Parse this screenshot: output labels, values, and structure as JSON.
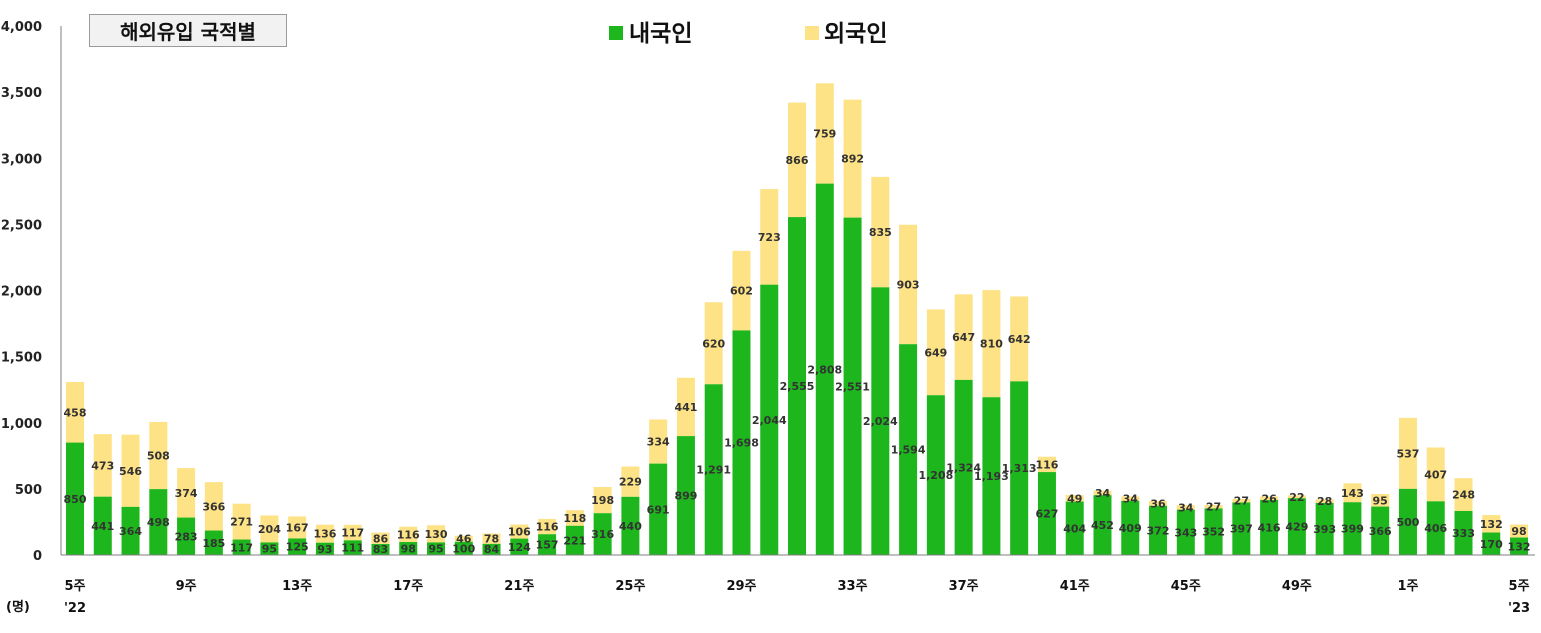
{
  "title": "해외유입 국적별",
  "unit_label": "(명)",
  "colors": {
    "domestic": "#1db61d",
    "foreign": "#fde286",
    "axis": "#7f7f7f"
  },
  "x_tick_labels": [
    {
      "index": 0,
      "label": "5주",
      "sub": "'22"
    },
    {
      "index": 4,
      "label": "9주"
    },
    {
      "index": 8,
      "label": "13주"
    },
    {
      "index": 12,
      "label": "17주"
    },
    {
      "index": 16,
      "label": "21주"
    },
    {
      "index": 20,
      "label": "25주"
    },
    {
      "index": 24,
      "label": "29주"
    },
    {
      "index": 28,
      "label": "33주"
    },
    {
      "index": 32,
      "label": "37주"
    },
    {
      "index": 36,
      "label": "41주"
    },
    {
      "index": 40,
      "label": "45주"
    },
    {
      "index": 44,
      "label": "49주"
    },
    {
      "index": 48,
      "label": "1주"
    },
    {
      "index": 52,
      "label": "5주",
      "sub": "'23"
    }
  ],
  "chart_data": {
    "type": "bar",
    "stacked": true,
    "title": "해외유입 국적별",
    "ylabel": "(명)",
    "ylim": [
      0,
      4000
    ],
    "yticks": [
      0,
      500,
      1000,
      1500,
      2000,
      2500,
      3000,
      3500,
      4000
    ],
    "grid": false,
    "legend_position": "top-center",
    "series": [
      {
        "name": "내국인",
        "color": "#1db61d",
        "values": [
          850,
          441,
          364,
          498,
          283,
          185,
          117,
          95,
          125,
          93,
          111,
          83,
          98,
          95,
          100,
          84,
          124,
          157,
          221,
          316,
          440,
          691,
          899,
          1291,
          1698,
          2044,
          2555,
          2808,
          2551,
          2024,
          1594,
          1208,
          1324,
          1193,
          1313,
          627,
          404,
          452,
          409,
          372,
          343,
          352,
          397,
          416,
          429,
          393,
          399,
          366,
          500,
          406,
          333,
          170,
          132
        ]
      },
      {
        "name": "외국인",
        "color": "#fde286",
        "values": [
          458,
          473,
          546,
          508,
          374,
          366,
          271,
          204,
          167,
          136,
          117,
          86,
          116,
          130,
          46,
          78,
          106,
          116,
          118,
          198,
          229,
          334,
          441,
          620,
          602,
          723,
          866,
          759,
          892,
          835,
          903,
          649,
          647,
          810,
          642,
          116,
          49,
          34,
          34,
          36,
          34,
          27,
          27,
          26,
          22,
          28,
          143,
          95,
          537,
          407,
          248,
          132,
          98
        ]
      }
    ]
  }
}
